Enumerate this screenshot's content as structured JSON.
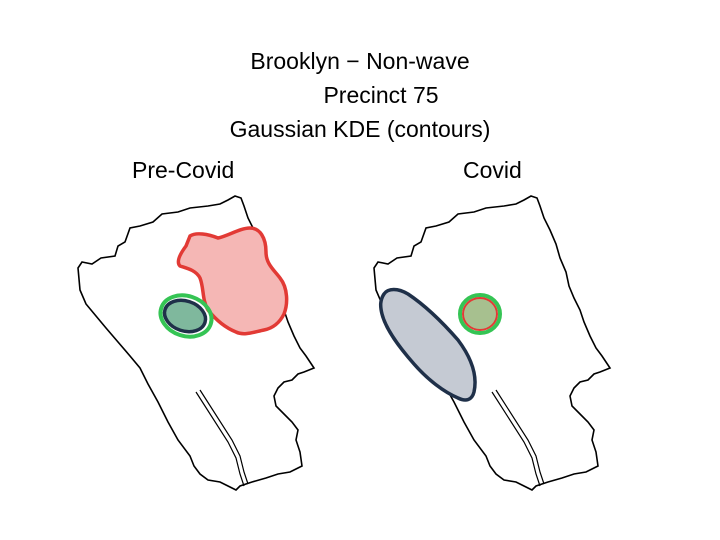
{
  "title": {
    "line1": "Brooklyn − Non-wave",
    "line2": "Precinct 75",
    "line3": "Gaussian KDE (contours)"
  },
  "panels": [
    {
      "label": "Pre-Covid",
      "contours": [
        {
          "name": "red-contour",
          "stroke": "#e23a35",
          "fill": "#f5b7b5"
        },
        {
          "name": "green-contour",
          "stroke": "#35c454",
          "fill": "none"
        },
        {
          "name": "navy-contour",
          "stroke": "#1f3049",
          "fill": "#7fb89d"
        }
      ]
    },
    {
      "label": "Covid",
      "contours": [
        {
          "name": "navy-contour",
          "stroke": "#1f3049",
          "fill": "#c5cad3"
        },
        {
          "name": "green-contour",
          "stroke": "#35c454",
          "fill": "none"
        },
        {
          "name": "red-contour",
          "stroke": "#e23a35",
          "fill": "#a7c08f"
        }
      ]
    }
  ],
  "colors": {
    "boundary": "#000000",
    "background": "#ffffff"
  }
}
